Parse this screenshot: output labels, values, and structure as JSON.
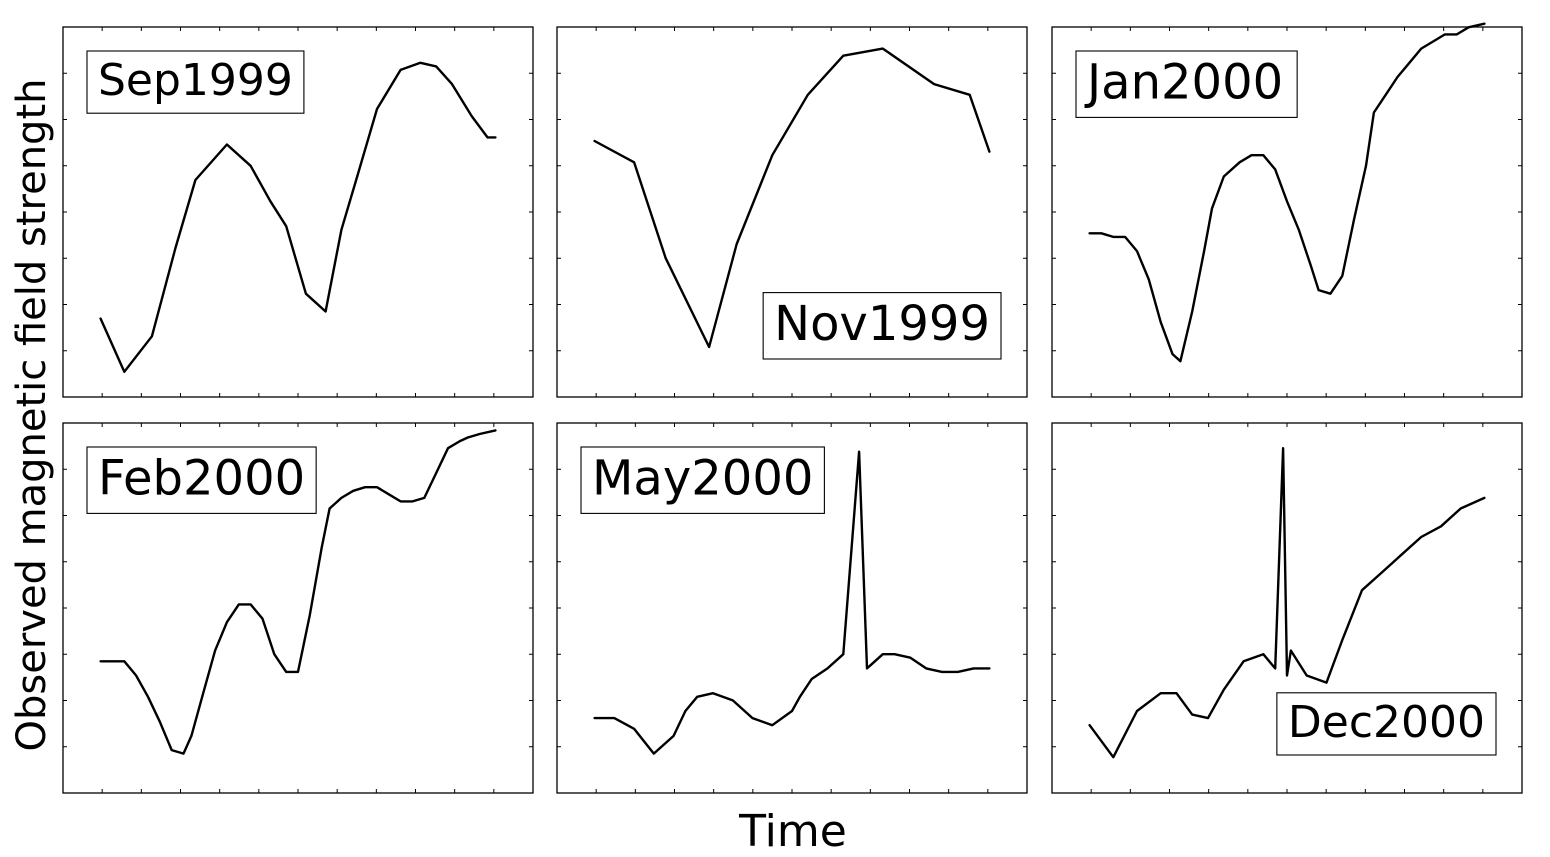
{
  "chart_data": {
    "type": "line",
    "title": "",
    "xlabel": "Time",
    "ylabel": "Observed magnetic field strength",
    "grid": false,
    "panels": [
      {
        "label": "Sep1999",
        "label_position": "top-left",
        "series": [
          {
            "x": [
              0,
              0.06,
              0.13,
              0.19,
              0.24,
              0.32,
              0.38,
              0.43,
              0.47,
              0.52,
              0.57,
              0.61,
              0.65,
              0.7,
              0.76,
              0.81,
              0.85,
              0.89,
              0.94,
              0.98,
              1.0
            ],
            "y": [
              0.2,
              0.05,
              0.15,
              0.4,
              0.59,
              0.69,
              0.63,
              0.53,
              0.46,
              0.27,
              0.22,
              0.45,
              0.6,
              0.79,
              0.9,
              0.92,
              0.91,
              0.86,
              0.77,
              0.71,
              0.71
            ]
          }
        ]
      },
      {
        "label": "Nov1999",
        "label_position": "bottom-right",
        "series": [
          {
            "x": [
              0,
              0.1,
              0.18,
              0.29,
              0.36,
              0.45,
              0.54,
              0.63,
              0.73,
              0.86,
              0.95,
              1.0
            ],
            "y": [
              0.7,
              0.64,
              0.37,
              0.12,
              0.41,
              0.66,
              0.83,
              0.94,
              0.96,
              0.86,
              0.83,
              0.67
            ]
          }
        ]
      },
      {
        "label": "Jan2000",
        "label_position": "top-left",
        "series": [
          {
            "x": [
              0,
              0.03,
              0.06,
              0.09,
              0.12,
              0.15,
              0.18,
              0.21,
              0.23,
              0.26,
              0.29,
              0.31,
              0.34,
              0.38,
              0.41,
              0.44,
              0.47,
              0.5,
              0.53,
              0.56,
              0.58,
              0.61,
              0.64,
              0.67,
              0.7,
              0.72,
              0.75,
              0.78,
              0.81,
              0.84,
              0.87,
              0.9,
              0.93,
              0.96,
              1.0
            ],
            "y": [
              0.44,
              0.44,
              0.43,
              0.43,
              0.39,
              0.31,
              0.19,
              0.1,
              0.08,
              0.22,
              0.39,
              0.51,
              0.6,
              0.64,
              0.66,
              0.66,
              0.62,
              0.53,
              0.45,
              0.35,
              0.28,
              0.27,
              0.32,
              0.48,
              0.63,
              0.78,
              0.83,
              0.88,
              0.92,
              0.96,
              0.98,
              1.0,
              1.0,
              1.02,
              1.03
            ]
          }
        ]
      },
      {
        "label": "Feb2000",
        "label_position": "top-left",
        "series": [
          {
            "x": [
              0,
              0.03,
              0.06,
              0.09,
              0.12,
              0.15,
              0.18,
              0.21,
              0.23,
              0.26,
              0.29,
              0.32,
              0.35,
              0.38,
              0.41,
              0.44,
              0.47,
              0.5,
              0.53,
              0.56,
              0.58,
              0.61,
              0.64,
              0.67,
              0.7,
              0.73,
              0.76,
              0.79,
              0.82,
              0.85,
              0.88,
              0.91,
              0.93,
              0.96,
              1.0
            ],
            "y": [
              0.35,
              0.35,
              0.35,
              0.31,
              0.25,
              0.18,
              0.1,
              0.09,
              0.14,
              0.26,
              0.38,
              0.46,
              0.51,
              0.51,
              0.47,
              0.37,
              0.32,
              0.32,
              0.48,
              0.67,
              0.78,
              0.81,
              0.83,
              0.84,
              0.84,
              0.82,
              0.8,
              0.8,
              0.81,
              0.88,
              0.95,
              0.97,
              0.98,
              0.99,
              1.0
            ]
          }
        ]
      },
      {
        "label": "May2000",
        "label_position": "top-left",
        "series": [
          {
            "x": [
              0,
              0.05,
              0.1,
              0.15,
              0.2,
              0.23,
              0.26,
              0.3,
              0.35,
              0.4,
              0.45,
              0.5,
              0.52,
              0.55,
              0.59,
              0.63,
              0.67,
              0.69,
              0.7,
              0.71,
              0.72,
              0.73,
              0.76,
              0.8,
              0.84,
              0.88,
              0.92,
              0.96,
              1.0
            ],
            "y": [
              0.19,
              0.19,
              0.16,
              0.09,
              0.14,
              0.21,
              0.25,
              0.26,
              0.24,
              0.19,
              0.17,
              0.21,
              0.25,
              0.3,
              0.33,
              0.37,
              0.94,
              0.33,
              0.34,
              0.35,
              0.36,
              0.37,
              0.37,
              0.36,
              0.33,
              0.32,
              0.32,
              0.33,
              0.33
            ]
          }
        ]
      },
      {
        "label": "Dec2000",
        "label_position": "bottom-right",
        "series": [
          {
            "x": [
              0,
              0.06,
              0.12,
              0.18,
              0.22,
              0.26,
              0.3,
              0.34,
              0.39,
              0.44,
              0.47,
              0.49,
              0.5,
              0.51,
              0.55,
              0.6,
              0.64,
              0.69,
              0.74,
              0.79,
              0.84,
              0.89,
              0.94,
              1.0
            ],
            "y": [
              0.17,
              0.08,
              0.21,
              0.26,
              0.26,
              0.2,
              0.19,
              0.27,
              0.35,
              0.37,
              0.33,
              0.95,
              0.31,
              0.38,
              0.31,
              0.29,
              0.41,
              0.55,
              0.6,
              0.65,
              0.7,
              0.73,
              0.78,
              0.81
            ]
          }
        ]
      }
    ]
  }
}
